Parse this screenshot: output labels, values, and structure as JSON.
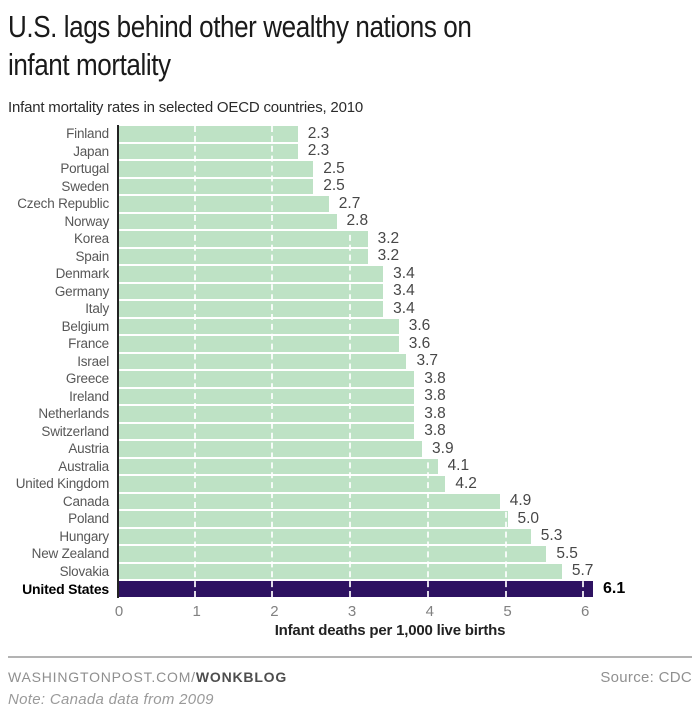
{
  "header": {
    "title_line1": "U.S. lags behind other wealthy nations on",
    "title_line2": "infant mortality",
    "subtitle": "Infant mortality rates in selected OECD countries, 2010"
  },
  "chart_data": {
    "type": "bar",
    "orientation": "horizontal",
    "title": "U.S. lags behind other wealthy nations on infant mortality",
    "subtitle": "Infant mortality rates in selected OECD countries, 2010",
    "categories": [
      "Finland",
      "Japan",
      "Portugal",
      "Sweden",
      "Czech Republic",
      "Norway",
      "Korea",
      "Spain",
      "Denmark",
      "Germany",
      "Italy",
      "Belgium",
      "France",
      "Israel",
      "Greece",
      "Ireland",
      "Netherlands",
      "Switzerland",
      "Austria",
      "Australia",
      "United Kingdom",
      "Canada",
      "Poland",
      "Hungary",
      "New Zealand",
      "Slovakia",
      "United States"
    ],
    "values": [
      2.3,
      2.3,
      2.5,
      2.5,
      2.7,
      2.8,
      3.2,
      3.2,
      3.4,
      3.4,
      3.4,
      3.6,
      3.6,
      3.7,
      3.8,
      3.8,
      3.8,
      3.8,
      3.9,
      4.1,
      4.2,
      4.9,
      5.0,
      5.3,
      5.5,
      5.7,
      6.1
    ],
    "value_labels": [
      "2.3",
      "2.3",
      "2.5",
      "2.5",
      "2.7",
      "2.8",
      "3.2",
      "3.2",
      "3.4",
      "3.4",
      "3.4",
      "3.6",
      "3.6",
      "3.7",
      "3.8",
      "3.8",
      "3.8",
      "3.8",
      "3.9",
      "4.1",
      "4.2",
      "4.9",
      "5.0",
      "5.3",
      "5.5",
      "5.7",
      "6.1"
    ],
    "highlight_category": "United States",
    "highlight_index": 26,
    "xlabel": "Infant deaths per 1,000 live births",
    "xlim": [
      0,
      6
    ],
    "xticks": [
      "0",
      "1",
      "2",
      "3",
      "4",
      "5",
      "6"
    ],
    "grid": "white dashed vertical lines over bars at integer ticks",
    "legend": "none",
    "colors": {
      "bar": "#bee2c5",
      "highlight_bar": "#2e1261",
      "axis_line": "#222222",
      "tick_label": "#818181",
      "value_label": "#474747",
      "category_label": "#575757"
    }
  },
  "footer": {
    "site": "WASHINGTONPOST.COM/",
    "blog": "WONKBLOG",
    "source": "Source: CDC",
    "note": "Note: Canada data from 2009"
  }
}
